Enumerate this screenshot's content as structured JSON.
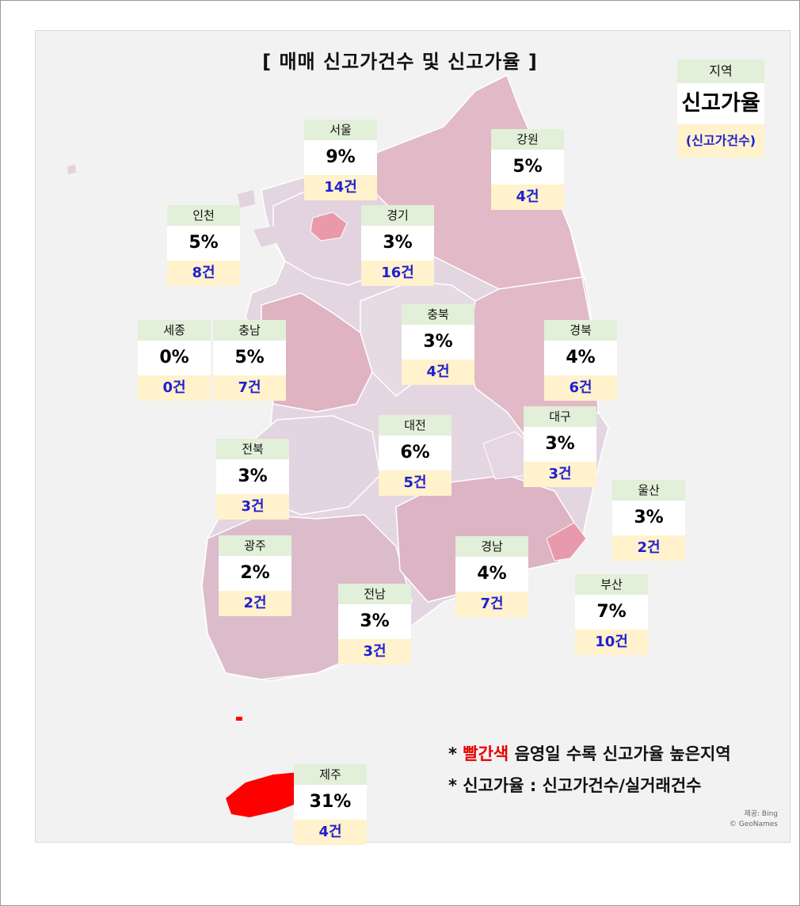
{
  "title": "[ 매매 신고가건수 및 신고가율 ]",
  "legend": {
    "region": "지역",
    "rate": "신고가율",
    "count": "(신고가건수)"
  },
  "regions": [
    {
      "key": "seoul",
      "name": "서울",
      "rate": "9%",
      "count": "14건",
      "rate_value": 9
    },
    {
      "key": "gangwon",
      "name": "강원",
      "rate": "5%",
      "count": "4건",
      "rate_value": 5
    },
    {
      "key": "incheon",
      "name": "인천",
      "rate": "5%",
      "count": "8건",
      "rate_value": 5
    },
    {
      "key": "gyeonggi",
      "name": "경기",
      "rate": "3%",
      "count": "16건",
      "rate_value": 3
    },
    {
      "key": "sejong",
      "name": "세종",
      "rate": "0%",
      "count": "0건",
      "rate_value": 0
    },
    {
      "key": "chungnam",
      "name": "충남",
      "rate": "5%",
      "count": "7건",
      "rate_value": 5
    },
    {
      "key": "chungbuk",
      "name": "충북",
      "rate": "3%",
      "count": "4건",
      "rate_value": 3
    },
    {
      "key": "gyeongbuk",
      "name": "경북",
      "rate": "4%",
      "count": "6건",
      "rate_value": 4
    },
    {
      "key": "daejeon",
      "name": "대전",
      "rate": "6%",
      "count": "5건",
      "rate_value": 6
    },
    {
      "key": "daegu",
      "name": "대구",
      "rate": "3%",
      "count": "3건",
      "rate_value": 3
    },
    {
      "key": "jeonbuk",
      "name": "전북",
      "rate": "3%",
      "count": "3건",
      "rate_value": 3
    },
    {
      "key": "ulsan",
      "name": "울산",
      "rate": "3%",
      "count": "2건",
      "rate_value": 3
    },
    {
      "key": "gwangju",
      "name": "광주",
      "rate": "2%",
      "count": "2건",
      "rate_value": 2
    },
    {
      "key": "gyeongnam",
      "name": "경남",
      "rate": "4%",
      "count": "7건",
      "rate_value": 4
    },
    {
      "key": "busan",
      "name": "부산",
      "rate": "7%",
      "count": "10건",
      "rate_value": 7
    },
    {
      "key": "jeonnam",
      "name": "전남",
      "rate": "3%",
      "count": "3건",
      "rate_value": 3
    },
    {
      "key": "jeju",
      "name": "제주",
      "rate": "31%",
      "count": "4건",
      "rate_value": 31
    }
  ],
  "notes": {
    "line1_prefix": "* ",
    "line1_red": "빨간색",
    "line1_rest": " 음영일 수록 신고가율 높은지역",
    "line2": "* 신고가율 : 신고가건수/실거래건수"
  },
  "credit": {
    "line1": "제공: Bing",
    "line2": "© GeoNames"
  },
  "colors": {
    "heading_bg": "#e2efd9",
    "value_bg": "#ffffff",
    "count_bg": "#fff2cc",
    "count_text": "#1f1fd1",
    "highlight_red": "#e60000",
    "map_low": "#e4d6e1",
    "map_mid": "#e2b9c6",
    "map_high": "#ff0000"
  }
}
